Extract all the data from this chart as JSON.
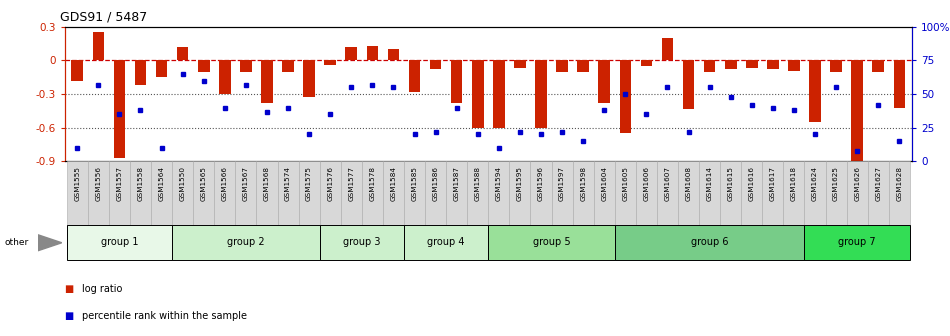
{
  "title": "GDS91 / 5487",
  "samples": [
    "GSM1555",
    "GSM1556",
    "GSM1557",
    "GSM1558",
    "GSM1564",
    "GSM1550",
    "GSM1565",
    "GSM1566",
    "GSM1567",
    "GSM1568",
    "GSM1574",
    "GSM1575",
    "GSM1576",
    "GSM1577",
    "GSM1578",
    "GSM1584",
    "GSM1585",
    "GSM1586",
    "GSM1587",
    "GSM1588",
    "GSM1594",
    "GSM1595",
    "GSM1596",
    "GSM1597",
    "GSM1598",
    "GSM1604",
    "GSM1605",
    "GSM1606",
    "GSM1607",
    "GSM1608",
    "GSM1614",
    "GSM1615",
    "GSM1616",
    "GSM1617",
    "GSM1618",
    "GSM1624",
    "GSM1625",
    "GSM1626",
    "GSM1627",
    "GSM1628"
  ],
  "log_ratio": [
    -0.18,
    0.25,
    -0.87,
    -0.22,
    -0.15,
    0.12,
    -0.1,
    -0.3,
    -0.1,
    -0.38,
    -0.1,
    -0.33,
    -0.04,
    0.12,
    0.13,
    0.1,
    -0.28,
    -0.08,
    -0.38,
    -0.6,
    -0.6,
    -0.07,
    -0.6,
    -0.1,
    -0.1,
    -0.38,
    -0.65,
    -0.05,
    0.2,
    -0.43,
    -0.1,
    -0.08,
    -0.07,
    -0.08,
    -0.09,
    -0.55,
    -0.1,
    -0.9,
    -0.1,
    -0.42
  ],
  "percentile": [
    10,
    57,
    35,
    38,
    10,
    65,
    60,
    40,
    57,
    37,
    40,
    20,
    35,
    55,
    57,
    55,
    20,
    22,
    40,
    20,
    10,
    22,
    20,
    22,
    15,
    38,
    50,
    35,
    55,
    22,
    55,
    48,
    42,
    40,
    38,
    20,
    55,
    8,
    42,
    15
  ],
  "groups": [
    {
      "name": "group 1",
      "start": 0,
      "end": 4,
      "color": "#e8f8e8"
    },
    {
      "name": "group 2",
      "start": 5,
      "end": 11,
      "color": "#ccf0cc"
    },
    {
      "name": "group 3",
      "start": 12,
      "end": 15,
      "color": "#ccf0cc"
    },
    {
      "name": "group 4",
      "start": 16,
      "end": 19,
      "color": "#ccf0cc"
    },
    {
      "name": "group 5",
      "start": 20,
      "end": 25,
      "color": "#99e099"
    },
    {
      "name": "group 6",
      "start": 26,
      "end": 34,
      "color": "#77cc88"
    },
    {
      "name": "group 7",
      "start": 35,
      "end": 39,
      "color": "#33dd55"
    }
  ],
  "ylim_left": [
    -0.9,
    0.3
  ],
  "ylim_right": [
    0,
    100
  ],
  "bar_color": "#cc2200",
  "dot_color": "#0000cc",
  "hline_color": "#cc0000",
  "bg_color": "#ffffff",
  "xtick_bg": "#dddddd",
  "legend_label_ratio": "log ratio",
  "legend_label_pct": "percentile rank within the sample"
}
